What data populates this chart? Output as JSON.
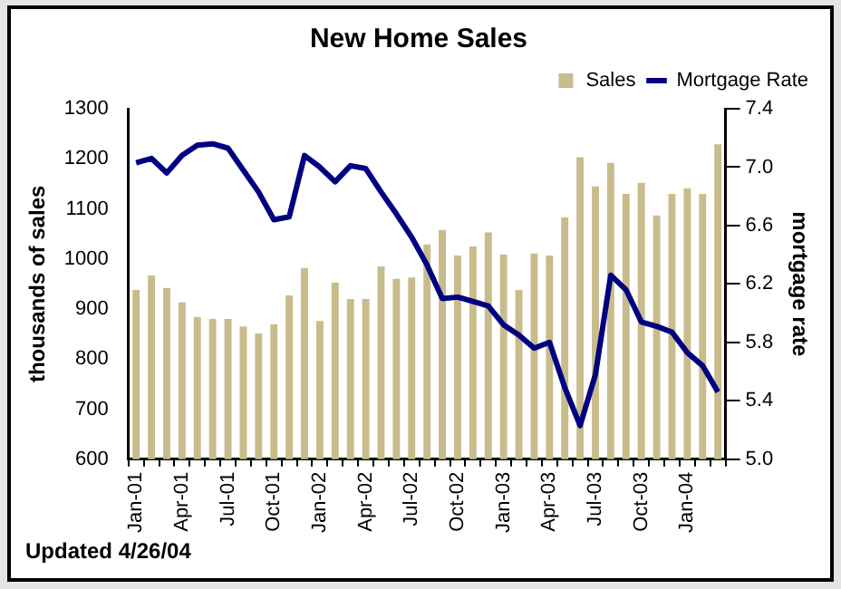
{
  "chart_data": {
    "type": "bar",
    "title": "New Home Sales",
    "ylabel": "thousands of sales",
    "y2label": "mortgage rate",
    "categories": [
      "Jan-01",
      null,
      null,
      "Apr-01",
      null,
      null,
      "Jul-01",
      null,
      null,
      "Oct-01",
      null,
      null,
      "Jan-02",
      null,
      null,
      "Apr-02",
      null,
      null,
      "Jul-02",
      null,
      null,
      "Oct-02",
      null,
      null,
      "Jan-03",
      null,
      null,
      "Apr-03",
      null,
      null,
      "Jul-03",
      null,
      null,
      "Oct-03",
      null,
      null,
      "Jan-04",
      null,
      null
    ],
    "series": [
      {
        "name": "Sales",
        "color": "#c8bc8c",
        "values": [
          938,
          967,
          942,
          913,
          884,
          880,
          880,
          865,
          851,
          869,
          927,
          982,
          876,
          953,
          920,
          920,
          985,
          960,
          963,
          1029,
          1058,
          1007,
          1025,
          1053,
          1009,
          938,
          1011,
          1007,
          1083,
          1203,
          1145,
          1192,
          1130,
          1152,
          1087,
          1130,
          1141,
          1130,
          1229
        ]
      },
      {
        "name": "Mortgage Rate",
        "type": "line",
        "axis": "y2",
        "color": "#000080",
        "values": [
          7.03,
          7.06,
          6.96,
          7.08,
          7.15,
          7.16,
          7.13,
          6.98,
          6.83,
          6.64,
          6.66,
          7.08,
          7.0,
          6.9,
          7.01,
          6.99,
          6.83,
          6.68,
          6.52,
          6.33,
          6.1,
          6.11,
          6.08,
          6.05,
          5.92,
          5.85,
          5.76,
          5.8,
          5.49,
          5.23,
          5.58,
          6.26,
          6.16,
          5.94,
          5.91,
          5.87,
          5.73,
          5.64,
          5.46
        ]
      }
    ],
    "ylim": [
      600,
      1300
    ],
    "yticks": [
      600,
      700,
      800,
      900,
      1000,
      1100,
      1200,
      1300
    ],
    "y2lim": [
      5.0,
      7.4
    ],
    "y2ticks": [
      {
        "value": 5.0,
        "label": "5.0"
      },
      {
        "value": 5.4,
        "label": "5.4"
      },
      {
        "value": 5.8,
        "label": "5.8"
      },
      {
        "value": 6.2,
        "label": "6.2"
      },
      {
        "value": 6.6,
        "label": "6.6"
      },
      {
        "value": 7.0,
        "label": "7.0"
      },
      {
        "value": 7.4,
        "label": "7.4"
      }
    ],
    "legend": "top right",
    "marker": "none",
    "line_style": "solid",
    "annotations": [
      "Updated 4/26/04"
    ]
  }
}
